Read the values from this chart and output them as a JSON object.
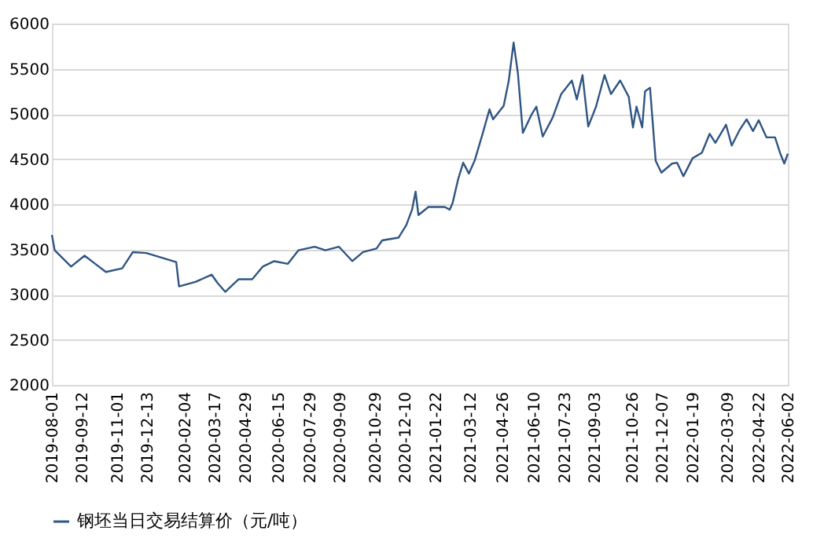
{
  "chart_data": {
    "type": "line",
    "x": [
      "2019-08-01",
      "2019-08-05",
      "2019-08-28",
      "2019-09-16",
      "2019-10-01",
      "2019-10-16",
      "2019-11-08",
      "2019-11-23",
      "2019-12-12",
      "2020-01-23",
      "2020-01-27",
      "2020-02-19",
      "2020-03-13",
      "2020-03-21",
      "2020-04-01",
      "2020-04-20",
      "2020-05-09",
      "2020-05-24",
      "2020-06-09",
      "2020-06-28",
      "2020-07-13",
      "2020-08-05",
      "2020-08-20",
      "2020-09-08",
      "2020-09-27",
      "2020-10-12",
      "2020-10-31",
      "2020-11-08",
      "2020-12-01",
      "2020-12-12",
      "2020-12-20",
      "2020-12-25",
      "2020-12-29",
      "2021-01-12",
      "2021-02-04",
      "2021-02-11",
      "2021-02-15",
      "2021-02-23",
      "2021-03-02",
      "2021-03-10",
      "2021-03-18",
      "2021-03-29",
      "2021-04-08",
      "2021-04-13",
      "2021-04-28",
      "2021-05-05",
      "2021-05-12",
      "2021-05-18",
      "2021-05-25",
      "2021-06-06",
      "2021-06-13",
      "2021-06-22",
      "2021-07-06",
      "2021-07-18",
      "2021-08-02",
      "2021-08-09",
      "2021-08-17",
      "2021-08-25",
      "2021-09-05",
      "2021-09-17",
      "2021-09-26",
      "2021-10-09",
      "2021-10-21",
      "2021-10-27",
      "2021-11-01",
      "2021-11-09",
      "2021-11-13",
      "2021-11-20",
      "2021-11-28",
      "2021-12-06",
      "2021-12-21",
      "2021-12-28",
      "2022-01-06",
      "2022-01-19",
      "2022-02-01",
      "2022-02-12",
      "2022-02-20",
      "2022-03-07",
      "2022-03-15",
      "2022-03-26",
      "2022-04-05",
      "2022-04-14",
      "2022-04-22",
      "2022-05-03",
      "2022-05-15",
      "2022-05-22",
      "2022-05-28",
      "2022-06-02"
    ],
    "series": [
      {
        "name": "钢坯当日交易结算价（元/吨）",
        "color": "#2f5584",
        "values": [
          3660,
          3490,
          3310,
          3430,
          3340,
          3250,
          3290,
          3470,
          3460,
          3360,
          3090,
          3140,
          3220,
          3130,
          3030,
          3170,
          3170,
          3310,
          3370,
          3340,
          3490,
          3530,
          3490,
          3530,
          3370,
          3470,
          3510,
          3600,
          3630,
          3770,
          3940,
          4140,
          3880,
          3970,
          3970,
          3940,
          4010,
          4280,
          4460,
          4340,
          4480,
          4770,
          5050,
          4940,
          5090,
          5360,
          5790,
          5450,
          4790,
          4990,
          5080,
          4750,
          4960,
          5220,
          5370,
          5160,
          5430,
          4860,
          5080,
          5430,
          5220,
          5370,
          5190,
          4850,
          5080,
          4850,
          5250,
          5290,
          4480,
          4350,
          4450,
          4460,
          4310,
          4510,
          4570,
          4780,
          4680,
          4880,
          4650,
          4820,
          4940,
          4810,
          4930,
          4740,
          4740,
          4570,
          4450,
          4560
        ]
      }
    ],
    "xlim": [
      "2019-08-01",
      "2022-06-02"
    ],
    "xticks": [
      "2019-08-01",
      "2019-09-12",
      "2019-11-01",
      "2019-12-13",
      "2020-02-04",
      "2020-03-17",
      "2020-04-29",
      "2020-06-15",
      "2020-07-29",
      "2020-09-09",
      "2020-10-29",
      "2020-12-10",
      "2021-01-22",
      "2021-03-12",
      "2021-04-26",
      "2021-06-10",
      "2021-07-23",
      "2021-09-03",
      "2021-10-26",
      "2021-12-07",
      "2022-01-19",
      "2022-03-09",
      "2022-04-22",
      "2022-06-02"
    ],
    "ylim": [
      2000,
      6000
    ],
    "yticks": [
      2000,
      2500,
      3000,
      3500,
      4000,
      4500,
      5000,
      5500,
      6000
    ],
    "grid": "y",
    "legend": "bottom",
    "marker": "none",
    "line_style": "solid"
  }
}
